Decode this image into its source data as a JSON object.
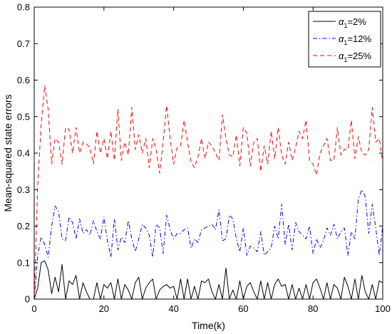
{
  "chart_data": {
    "type": "line",
    "title": "",
    "xlabel": "Time(k)",
    "ylabel": "Mean-squared state errors",
    "xlim": [
      0,
      100
    ],
    "ylim": [
      0,
      0.8
    ],
    "xticks": [
      0,
      20,
      40,
      60,
      80,
      100
    ],
    "yticks": [
      0,
      0.1,
      0.2,
      0.3,
      0.4,
      0.5,
      0.6,
      0.7,
      0.8
    ],
    "xtick_labels": [
      "0",
      "20",
      "40",
      "60",
      "80",
      "100"
    ],
    "ytick_labels": [
      "0",
      "0.1",
      "0.2",
      "0.3",
      "0.4",
      "0.5",
      "0.6",
      "0.7",
      "0.8"
    ],
    "grid": false,
    "legend_position": "top-right",
    "x": [
      0,
      1,
      2,
      3,
      4,
      5,
      6,
      7,
      8,
      9,
      10,
      11,
      12,
      13,
      14,
      15,
      16,
      17,
      18,
      19,
      20,
      21,
      22,
      23,
      24,
      25,
      26,
      27,
      28,
      29,
      30,
      31,
      32,
      33,
      34,
      35,
      36,
      37,
      38,
      39,
      40,
      41,
      42,
      43,
      44,
      45,
      46,
      47,
      48,
      49,
      50,
      51,
      52,
      53,
      54,
      55,
      56,
      57,
      58,
      59,
      60,
      61,
      62,
      63,
      64,
      65,
      66,
      67,
      68,
      69,
      70,
      71,
      72,
      73,
      74,
      75,
      76,
      77,
      78,
      79,
      80,
      81,
      82,
      83,
      84,
      85,
      86,
      87,
      88,
      89,
      90,
      91,
      92,
      93,
      94,
      95,
      96,
      97,
      98,
      99,
      100
    ],
    "series": [
      {
        "name": "α",
        "name_sub": "1",
        "name_suffix": "=2%",
        "color": "#000000",
        "dash": "solid",
        "values": [
          0,
          0.03,
          0.1,
          0.105,
          0.08,
          0.015,
          0.06,
          0.02,
          0.095,
          0,
          0.05,
          0.04,
          0.065,
          0,
          0.045,
          0.02,
          0,
          0,
          0.045,
          0,
          0.04,
          0.03,
          0.045,
          0,
          0.055,
          0,
          0.04,
          0.025,
          0,
          0.045,
          0.06,
          0,
          0.03,
          0.045,
          0.055,
          0,
          0.025,
          0.035,
          0.04,
          0.03,
          0.035,
          0,
          0.055,
          0,
          0.055,
          0,
          0.035,
          0,
          0.05,
          0.045,
          0.055,
          0.02,
          0,
          0.04,
          0,
          0.085,
          0,
          0.025,
          0,
          0.05,
          0,
          0.035,
          0.045,
          0.02,
          0,
          0.05,
          0,
          0.045,
          0,
          0.04,
          0.055,
          0.035,
          0.04,
          0,
          0.04,
          0,
          0.03,
          0,
          0.04,
          0,
          0.045,
          0.055,
          0.03,
          0,
          0.045,
          0,
          0.04,
          0.03,
          0,
          0.06,
          0.035,
          0,
          0.055,
          0,
          0.065,
          0.02,
          0,
          0.04,
          0,
          0.05,
          0.045
        ]
      },
      {
        "name": "α",
        "name_sub": "1",
        "name_suffix": "=12%",
        "color": "#0000ff",
        "dash": "dashdot",
        "values": [
          0,
          0.12,
          0.17,
          0.15,
          0.115,
          0.2,
          0.255,
          0.24,
          0.165,
          0.16,
          0.225,
          0.21,
          0.165,
          0.22,
          0.18,
          0.19,
          0.175,
          0.215,
          0.185,
          0.165,
          0.225,
          0.16,
          0.115,
          0.22,
          0.135,
          0.17,
          0.155,
          0.215,
          0.165,
          0.13,
          0.165,
          0.205,
          0.195,
          0.175,
          0.115,
          0.205,
          0.195,
          0.125,
          0.23,
          0.19,
          0.165,
          0.18,
          0.18,
          0.19,
          0.195,
          0.14,
          0.165,
          0.155,
          0.19,
          0.195,
          0.2,
          0.205,
          0.19,
          0.245,
          0.16,
          0.165,
          0.23,
          0.22,
          0.165,
          0.13,
          0.195,
          0.12,
          0.145,
          0.14,
          0.13,
          0.185,
          0.12,
          0.13,
          0.14,
          0.2,
          0.165,
          0.26,
          0.15,
          0.205,
          0.135,
          0.21,
          0.185,
          0.175,
          0.165,
          0.2,
          0.125,
          0.165,
          0.14,
          0.16,
          0.195,
          0.175,
          0.205,
          0.165,
          0.185,
          0.195,
          0.12,
          0.185,
          0.165,
          0.275,
          0.3,
          0.28,
          0.18,
          0.26,
          0.195,
          0.12,
          0.2
        ]
      },
      {
        "name": "α",
        "name_sub": "1",
        "name_suffix": "=25%",
        "color": "#ff0000",
        "dash": "dashed",
        "values": [
          0,
          0.31,
          0.48,
          0.585,
          0.52,
          0.37,
          0.44,
          0.43,
          0.37,
          0.47,
          0.465,
          0.4,
          0.47,
          0.4,
          0.43,
          0.425,
          0.415,
          0.37,
          0.46,
          0.4,
          0.44,
          0.385,
          0.46,
          0.38,
          0.52,
          0.38,
          0.43,
          0.395,
          0.525,
          0.41,
          0.45,
          0.4,
          0.44,
          0.36,
          0.44,
          0.41,
          0.345,
          0.43,
          0.53,
          0.44,
          0.37,
          0.415,
          0.42,
          0.49,
          0.43,
          0.375,
          0.36,
          0.39,
          0.44,
          0.385,
          0.43,
          0.42,
          0.4,
          0.38,
          0.505,
          0.44,
          0.395,
          0.39,
          0.45,
          0.365,
          0.47,
          0.455,
          0.365,
          0.43,
          0.44,
          0.35,
          0.42,
          0.37,
          0.46,
          0.385,
          0.47,
          0.395,
          0.37,
          0.43,
          0.38,
          0.415,
          0.46,
          0.44,
          0.49,
          0.38,
          0.37,
          0.34,
          0.4,
          0.42,
          0.44,
          0.38,
          0.38,
          0.47,
          0.395,
          0.41,
          0.41,
          0.49,
          0.385,
          0.445,
          0.4,
          0.395,
          0.41,
          0.525,
          0.43,
          0.44,
          0.375
        ]
      }
    ]
  }
}
